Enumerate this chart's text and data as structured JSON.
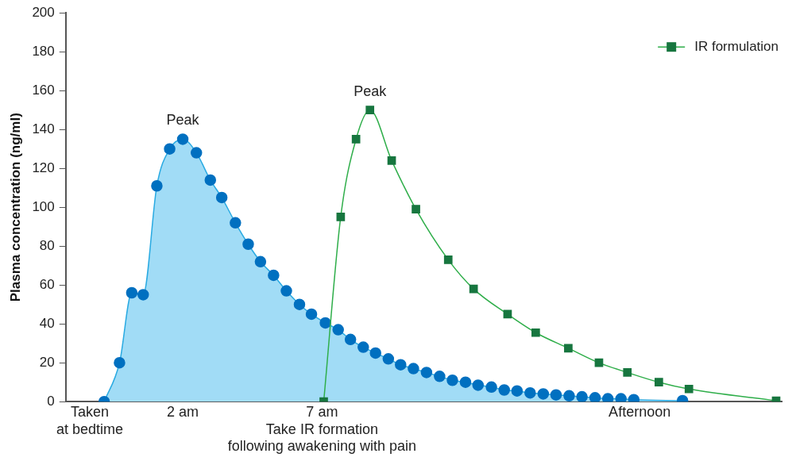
{
  "chart_data": {
    "type": "line",
    "ylabel": "Plasma concentration (ng/ml)",
    "xlim": [
      -2.2,
      23.5
    ],
    "xticks": [
      {
        "value": -1.34,
        "label": "Taken\nat bedtime"
      },
      {
        "value": 2,
        "label": "2 am"
      },
      {
        "value": 7,
        "label": "7 am\nTake IR formation\nfollowing awakening with pain"
      },
      {
        "value": 18.4,
        "label": "Afternoon"
      }
    ],
    "ylim": [
      0,
      200
    ],
    "yticks": [
      0,
      20,
      40,
      60,
      80,
      100,
      120,
      140,
      160,
      180,
      200
    ],
    "grid": false,
    "legend": "top right",
    "line_style": "solid",
    "annotations": [
      {
        "text": "Peak",
        "x": 2,
        "y": 135
      },
      {
        "text": "Peak",
        "x": 8.72,
        "y": 150
      }
    ],
    "series": [
      {
        "type": "area",
        "color": "#0070c0",
        "marker": "circle",
        "x": [
          -0.82,
          -0.27,
          0.17,
          0.58,
          1.07,
          1.53,
          2,
          2.49,
          2.99,
          3.4,
          3.89,
          4.35,
          4.79,
          5.26,
          5.72,
          6.19,
          6.62,
          7.12,
          7.58,
          8.02,
          8.48,
          8.92,
          9.38,
          9.82,
          10.28,
          10.75,
          11.22,
          11.68,
          12.15,
          12.6,
          13.08,
          13.54,
          14,
          14.47,
          14.94,
          15.4,
          15.87,
          16.33,
          16.8,
          17.26,
          17.73,
          18.19,
          19.94
        ],
        "values": [
          0,
          20,
          56,
          55,
          111,
          130,
          135,
          128,
          114,
          105,
          92,
          81,
          72,
          65,
          57,
          50,
          45,
          40.5,
          37,
          32,
          28,
          25,
          22,
          19,
          17,
          15,
          13,
          11,
          10,
          8.5,
          7.5,
          6,
          5.5,
          4.5,
          4,
          3.5,
          3,
          2.5,
          2,
          1.5,
          1.5,
          1,
          0.5
        ]
      },
      {
        "type": "line",
        "name": "IR formulation",
        "color": "#17763f",
        "marker": "square",
        "x": [
          7.06,
          7.67,
          8.22,
          8.72,
          9.5,
          10.37,
          11.53,
          12.44,
          13.66,
          14.67,
          15.84,
          16.94,
          17.96,
          19.09,
          20.17,
          23.3
        ],
        "values": [
          0,
          95,
          135,
          150,
          124,
          99,
          73,
          58,
          45,
          35.5,
          27.5,
          20,
          15,
          10,
          6.5,
          0.5
        ]
      }
    ]
  }
}
